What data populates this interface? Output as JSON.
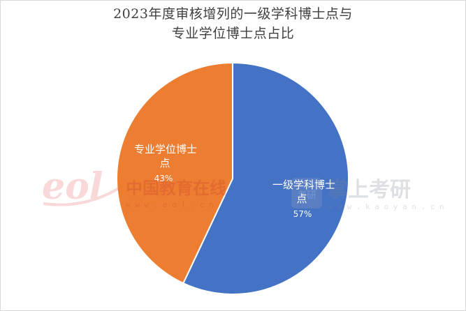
{
  "chart_data": {
    "type": "pie",
    "title_lines": [
      "2023年度审核增列的一级学科博士点与",
      "专业学位博士点占比"
    ],
    "slices": [
      {
        "label_lines": [
          "一级学科博士",
          "点"
        ],
        "pct_label": "57%",
        "value": 57,
        "color": "#4472c4"
      },
      {
        "label_lines": [
          "专业学位博士",
          "点"
        ],
        "pct_label": "43%",
        "value": 43,
        "color": "#ed7d31"
      }
    ],
    "legend": "none"
  },
  "watermarks": {
    "left_logo_text": "eol",
    "left_cn": "中国教育在线",
    "left_url": "w w w . e o l . c n",
    "right_cn": "掌上考研",
    "right_badge": "考研",
    "right_url": "w w w . k a o y a n . c n"
  }
}
